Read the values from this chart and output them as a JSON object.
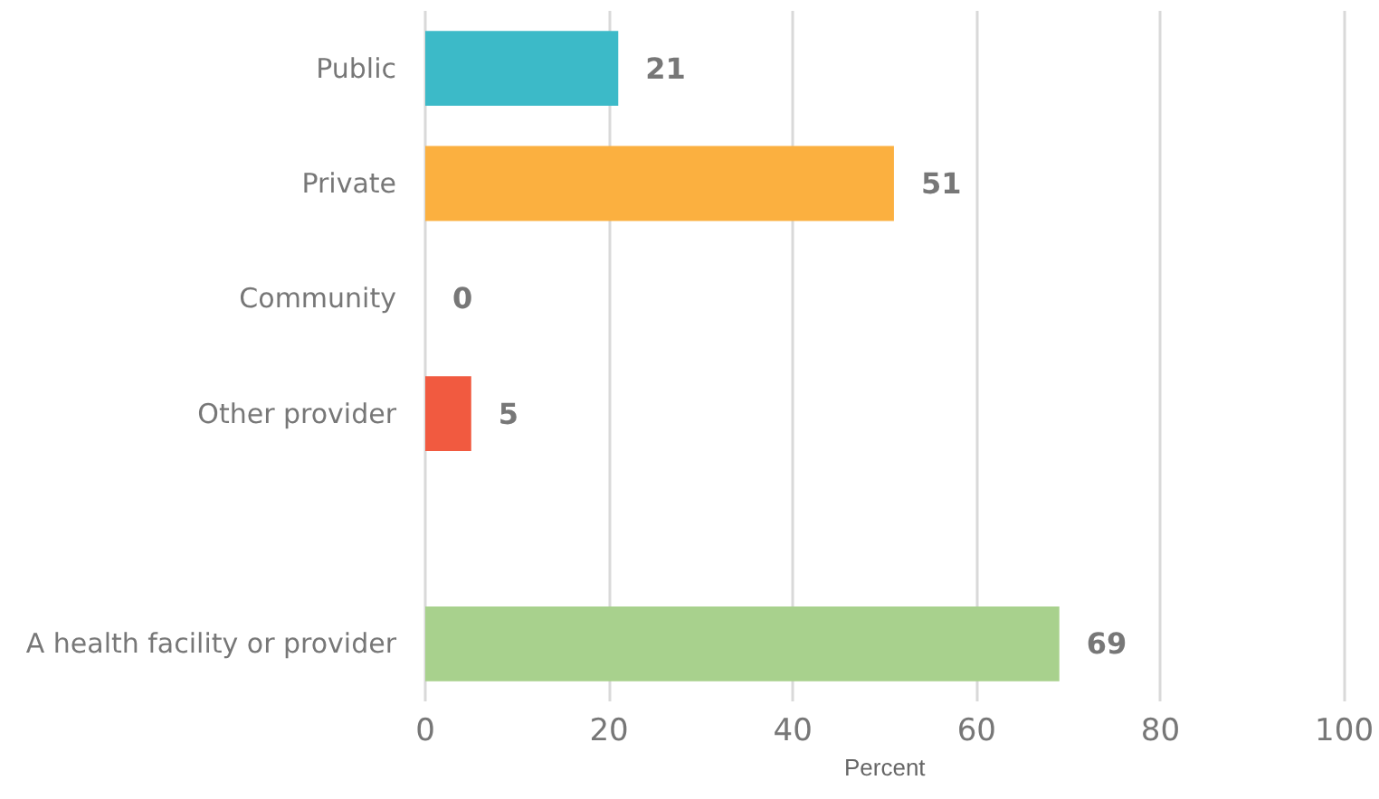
{
  "chart_data": {
    "type": "bar",
    "orientation": "horizontal",
    "categories": [
      "Public",
      "Private",
      "Community",
      "Other provider",
      null,
      "A health facility or provider"
    ],
    "values": [
      21,
      51,
      0,
      5,
      null,
      69
    ],
    "colors": [
      "#3cbac8",
      "#fbb040",
      "#7b5ea7",
      "#f15a40",
      null,
      "#a8d18d"
    ],
    "xlabel": "Percent",
    "xlim": [
      0,
      100
    ],
    "xticks": [
      0,
      20,
      40,
      60,
      80,
      100
    ],
    "grid": "x",
    "data_labels": true
  }
}
